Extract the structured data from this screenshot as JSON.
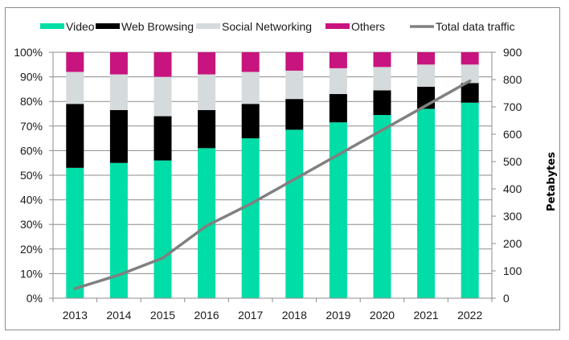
{
  "chart_data": {
    "type": "bar",
    "stacked": true,
    "percent_stacked": true,
    "title": "",
    "xlabel": "",
    "ylabel": "",
    "y2label": "Petabytes",
    "categories": [
      "2013",
      "2014",
      "2015",
      "2016",
      "2017",
      "2018",
      "2019",
      "2020",
      "2021",
      "2022"
    ],
    "ylim": [
      0,
      100
    ],
    "y_ticks": [
      "0%",
      "10%",
      "20%",
      "30%",
      "40%",
      "50%",
      "60%",
      "70%",
      "80%",
      "90%",
      "100%"
    ],
    "y2lim": [
      0,
      900
    ],
    "y2_ticks": [
      "0",
      "100",
      "200",
      "300",
      "400",
      "500",
      "600",
      "700",
      "800",
      "900"
    ],
    "grid": true,
    "legend_position": "top",
    "series": [
      {
        "name": "Video",
        "type": "bar",
        "axis": "left",
        "color": "#00DDA6",
        "values": [
          53,
          55,
          56,
          61,
          65,
          68.5,
          71.5,
          74.5,
          77,
          79.5
        ]
      },
      {
        "name": "Web Browsing",
        "type": "bar",
        "axis": "left",
        "color": "#000000",
        "values": [
          26,
          21.5,
          18,
          15.5,
          14,
          12.5,
          11.5,
          10,
          9,
          8
        ]
      },
      {
        "name": "Social Networking",
        "type": "bar",
        "axis": "left",
        "color": "#D5DADC",
        "values": [
          13,
          14.5,
          16,
          14.5,
          13,
          11.5,
          10.5,
          9.5,
          9,
          7.5
        ]
      },
      {
        "name": "Others",
        "type": "bar",
        "axis": "left",
        "color": "#C8147E",
        "values": [
          8,
          9,
          10,
          9,
          8,
          7.5,
          6.5,
          6,
          5,
          5
        ]
      },
      {
        "name": "Total data traffic",
        "type": "line",
        "axis": "right",
        "color": "#808080",
        "values": [
          35,
          85,
          147,
          265,
          345,
          435,
          525,
          615,
          705,
          795
        ]
      }
    ]
  }
}
